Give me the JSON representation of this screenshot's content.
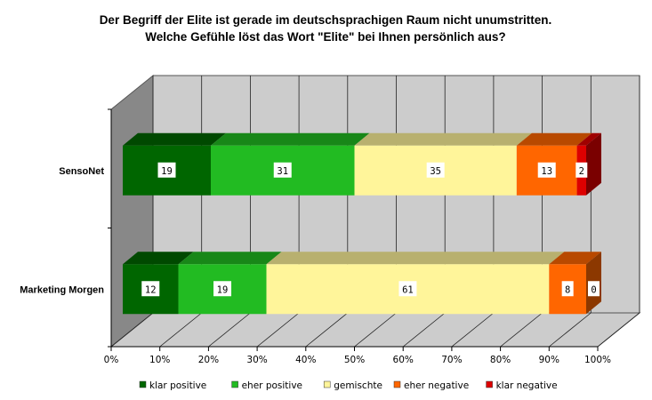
{
  "chart_data": {
    "type": "bar",
    "orientation": "horizontal",
    "stacked": true,
    "style": "3d",
    "title": "Der Begriff der Elite ist gerade im deutschsprachigen Raum nicht unumstritten.",
    "subtitle": "Welche Gefühle löst das Wort \"Elite\" bei Ihnen persönlich aus?",
    "categories": [
      "SensoNet",
      "Marketing Morgen"
    ],
    "series": [
      {
        "name": "klar positive",
        "values": [
          19,
          12
        ],
        "color": "#006600"
      },
      {
        "name": "eher positive",
        "values": [
          31,
          19
        ],
        "color": "#22bb22"
      },
      {
        "name": "gemischte",
        "values": [
          35,
          61
        ],
        "color": "#fff59a"
      },
      {
        "name": "eher negative",
        "values": [
          13,
          8
        ],
        "color": "#ff6600"
      },
      {
        "name": "klar negative",
        "values": [
          2,
          0
        ],
        "color": "#dd0000"
      }
    ],
    "xlabel": "",
    "ylabel": "",
    "xlim": [
      0,
      100
    ],
    "x_ticks": [
      "0%",
      "10%",
      "20%",
      "30%",
      "40%",
      "50%",
      "60%",
      "70%",
      "80%",
      "90%",
      "100%"
    ],
    "grid": true,
    "legend_position": "bottom",
    "wall_color": "#cccccc",
    "side_wall_color": "#888888"
  }
}
